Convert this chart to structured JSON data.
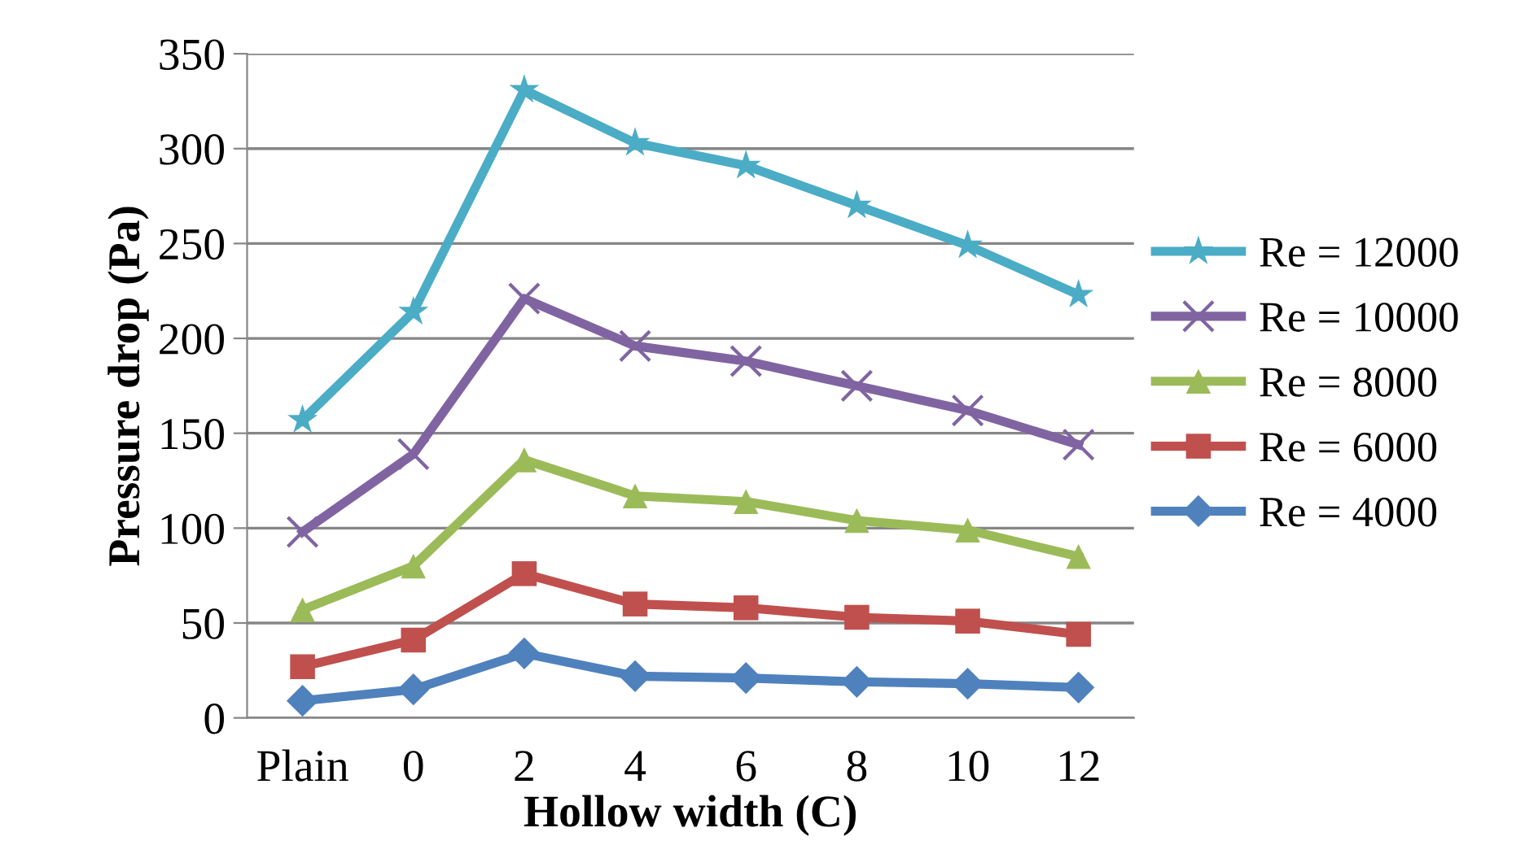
{
  "chart_data": {
    "type": "line",
    "xlabel": "Hollow width (C)",
    "ylabel": "Pressure drop (Pa)",
    "categories": [
      "Plain",
      "0",
      "2",
      "4",
      "6",
      "8",
      "10",
      "12"
    ],
    "ylim": [
      0,
      350
    ],
    "yticks": [
      0,
      50,
      100,
      150,
      200,
      250,
      300,
      350
    ],
    "grid": "y",
    "legend": "right",
    "line_style": "solid",
    "series": [
      {
        "name": "Re = 12000",
        "color": "#4bacc6",
        "marker": "star",
        "values": [
          157,
          214,
          331,
          303,
          291,
          270,
          249,
          223
        ]
      },
      {
        "name": "Re = 10000",
        "color": "#8064a2",
        "marker": "cross",
        "values": [
          98,
          139,
          221,
          196,
          188,
          175,
          162,
          144
        ]
      },
      {
        "name": "Re = 8000",
        "color": "#9bbb59",
        "marker": "triangle",
        "values": [
          57,
          80,
          136,
          117,
          114,
          104,
          99,
          85
        ]
      },
      {
        "name": "Re = 6000",
        "color": "#c0504d",
        "marker": "square",
        "values": [
          27,
          41,
          76,
          60,
          58,
          53,
          51,
          44
        ]
      },
      {
        "name": "Re = 4000",
        "color": "#4f81bd",
        "marker": "diamond",
        "values": [
          9,
          15,
          34,
          22,
          21,
          19,
          18,
          16
        ]
      }
    ]
  }
}
